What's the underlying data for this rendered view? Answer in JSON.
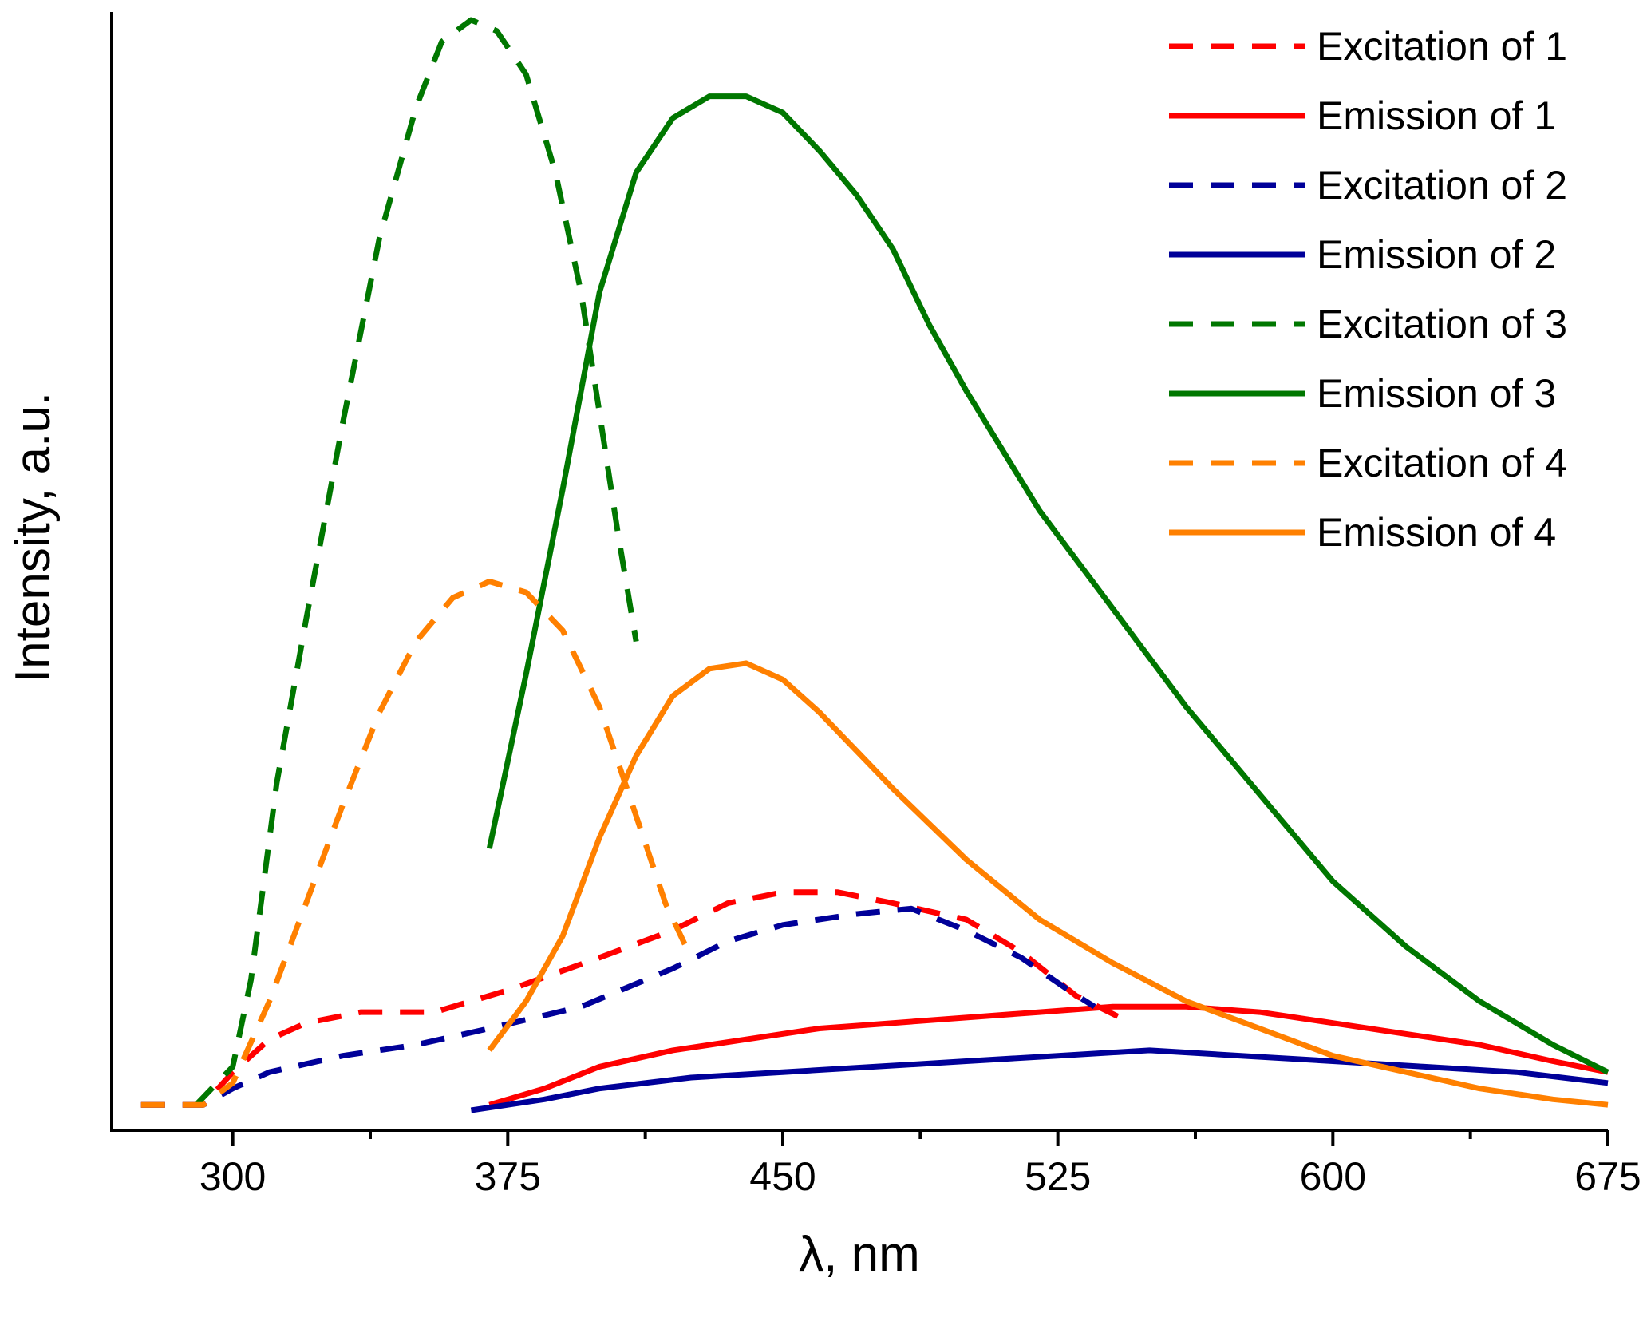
{
  "chart_data": {
    "type": "line",
    "title": "",
    "xlabel": "λ, nm",
    "ylabel": "Intensity, a.u.",
    "xlim": [
      267,
      675
    ],
    "ylim": [
      0,
      100
    ],
    "x_ticks": [
      300,
      375,
      450,
      525,
      600,
      675
    ],
    "y_tick_labels": false,
    "grid": false,
    "legend_position": "top-right",
    "series": [
      {
        "name": "Excitation of 1",
        "color": "#ff0000",
        "style": "dashed",
        "points": [
          [
            275,
            0.5
          ],
          [
            292,
            0.5
          ],
          [
            300,
            3.5
          ],
          [
            310,
            6.5
          ],
          [
            320,
            8
          ],
          [
            335,
            9
          ],
          [
            355,
            9
          ],
          [
            375,
            11
          ],
          [
            400,
            14
          ],
          [
            420,
            16.5
          ],
          [
            435,
            19
          ],
          [
            450,
            20
          ],
          [
            465,
            20
          ],
          [
            480,
            19
          ],
          [
            500,
            17.5
          ],
          [
            515,
            14.5
          ],
          [
            530,
            10.5
          ],
          [
            542,
            8.5
          ]
        ]
      },
      {
        "name": "Emission of 1",
        "color": "#ff0000",
        "style": "solid",
        "points": [
          [
            370,
            0.5
          ],
          [
            385,
            2
          ],
          [
            400,
            4
          ],
          [
            420,
            5.5
          ],
          [
            440,
            6.5
          ],
          [
            460,
            7.5
          ],
          [
            480,
            8
          ],
          [
            500,
            8.5
          ],
          [
            520,
            9
          ],
          [
            540,
            9.5
          ],
          [
            560,
            9.5
          ],
          [
            580,
            9
          ],
          [
            600,
            8
          ],
          [
            620,
            7
          ],
          [
            640,
            6
          ],
          [
            660,
            4.5
          ],
          [
            675,
            3.5
          ]
        ]
      },
      {
        "name": "Excitation of 2",
        "color": "#000099",
        "style": "dashed",
        "points": [
          [
            275,
            0.5
          ],
          [
            292,
            0.5
          ],
          [
            300,
            2
          ],
          [
            310,
            3.5
          ],
          [
            330,
            5
          ],
          [
            350,
            6
          ],
          [
            370,
            7.5
          ],
          [
            395,
            9.5
          ],
          [
            420,
            13
          ],
          [
            435,
            15.5
          ],
          [
            450,
            17
          ],
          [
            470,
            18
          ],
          [
            485,
            18.5
          ],
          [
            500,
            16.5
          ],
          [
            515,
            14
          ],
          [
            528,
            11
          ],
          [
            535,
            9.5
          ]
        ]
      },
      {
        "name": "Emission of 2",
        "color": "#000099",
        "style": "solid",
        "points": [
          [
            365,
            0
          ],
          [
            385,
            1
          ],
          [
            400,
            2
          ],
          [
            425,
            3
          ],
          [
            450,
            3.5
          ],
          [
            475,
            4
          ],
          [
            500,
            4.5
          ],
          [
            525,
            5
          ],
          [
            550,
            5.5
          ],
          [
            575,
            5
          ],
          [
            600,
            4.5
          ],
          [
            625,
            4
          ],
          [
            650,
            3.5
          ],
          [
            675,
            2.5
          ]
        ]
      },
      {
        "name": "Excitation of 3",
        "color": "#007700",
        "style": "dashed",
        "points": [
          [
            290,
            0.5
          ],
          [
            300,
            4
          ],
          [
            305,
            12
          ],
          [
            312,
            30
          ],
          [
            320,
            45
          ],
          [
            330,
            63
          ],
          [
            340,
            80
          ],
          [
            350,
            92
          ],
          [
            357,
            98
          ],
          [
            365,
            100
          ],
          [
            372,
            99
          ],
          [
            380,
            95
          ],
          [
            388,
            86
          ],
          [
            395,
            75
          ],
          [
            400,
            64
          ],
          [
            405,
            53
          ],
          [
            410,
            43
          ]
        ]
      },
      {
        "name": "Emission of 3",
        "color": "#007700",
        "style": "solid",
        "points": [
          [
            370,
            24
          ],
          [
            380,
            40
          ],
          [
            390,
            57
          ],
          [
            400,
            75
          ],
          [
            410,
            86
          ],
          [
            420,
            91
          ],
          [
            430,
            93
          ],
          [
            440,
            93
          ],
          [
            450,
            91.5
          ],
          [
            460,
            88
          ],
          [
            470,
            84
          ],
          [
            480,
            79
          ],
          [
            490,
            72
          ],
          [
            500,
            66
          ],
          [
            520,
            55
          ],
          [
            540,
            46
          ],
          [
            560,
            37
          ],
          [
            580,
            29
          ],
          [
            600,
            21
          ],
          [
            620,
            15
          ],
          [
            640,
            10
          ],
          [
            660,
            6
          ],
          [
            675,
            3.5
          ]
        ]
      },
      {
        "name": "Excitation of 4",
        "color": "#ff8000",
        "style": "dashed",
        "points": [
          [
            275,
            0.5
          ],
          [
            292,
            0.5
          ],
          [
            300,
            2.5
          ],
          [
            310,
            10
          ],
          [
            320,
            19
          ],
          [
            330,
            28
          ],
          [
            340,
            36.5
          ],
          [
            350,
            43
          ],
          [
            360,
            47
          ],
          [
            370,
            48.5
          ],
          [
            380,
            47.5
          ],
          [
            390,
            44
          ],
          [
            400,
            37
          ],
          [
            405,
            32
          ],
          [
            410,
            27
          ],
          [
            418,
            19
          ],
          [
            425,
            14
          ]
        ]
      },
      {
        "name": "Emission of 4",
        "color": "#ff8000",
        "style": "solid",
        "points": [
          [
            370,
            5.5
          ],
          [
            380,
            10
          ],
          [
            390,
            16
          ],
          [
            400,
            25
          ],
          [
            410,
            32.5
          ],
          [
            420,
            38
          ],
          [
            430,
            40.5
          ],
          [
            440,
            41
          ],
          [
            450,
            39.5
          ],
          [
            460,
            36.5
          ],
          [
            470,
            33
          ],
          [
            480,
            29.5
          ],
          [
            500,
            23
          ],
          [
            520,
            17.5
          ],
          [
            540,
            13.5
          ],
          [
            560,
            10
          ],
          [
            580,
            7.5
          ],
          [
            600,
            5
          ],
          [
            620,
            3.5
          ],
          [
            640,
            2
          ],
          [
            660,
            1
          ],
          [
            675,
            0.5
          ]
        ]
      }
    ]
  }
}
